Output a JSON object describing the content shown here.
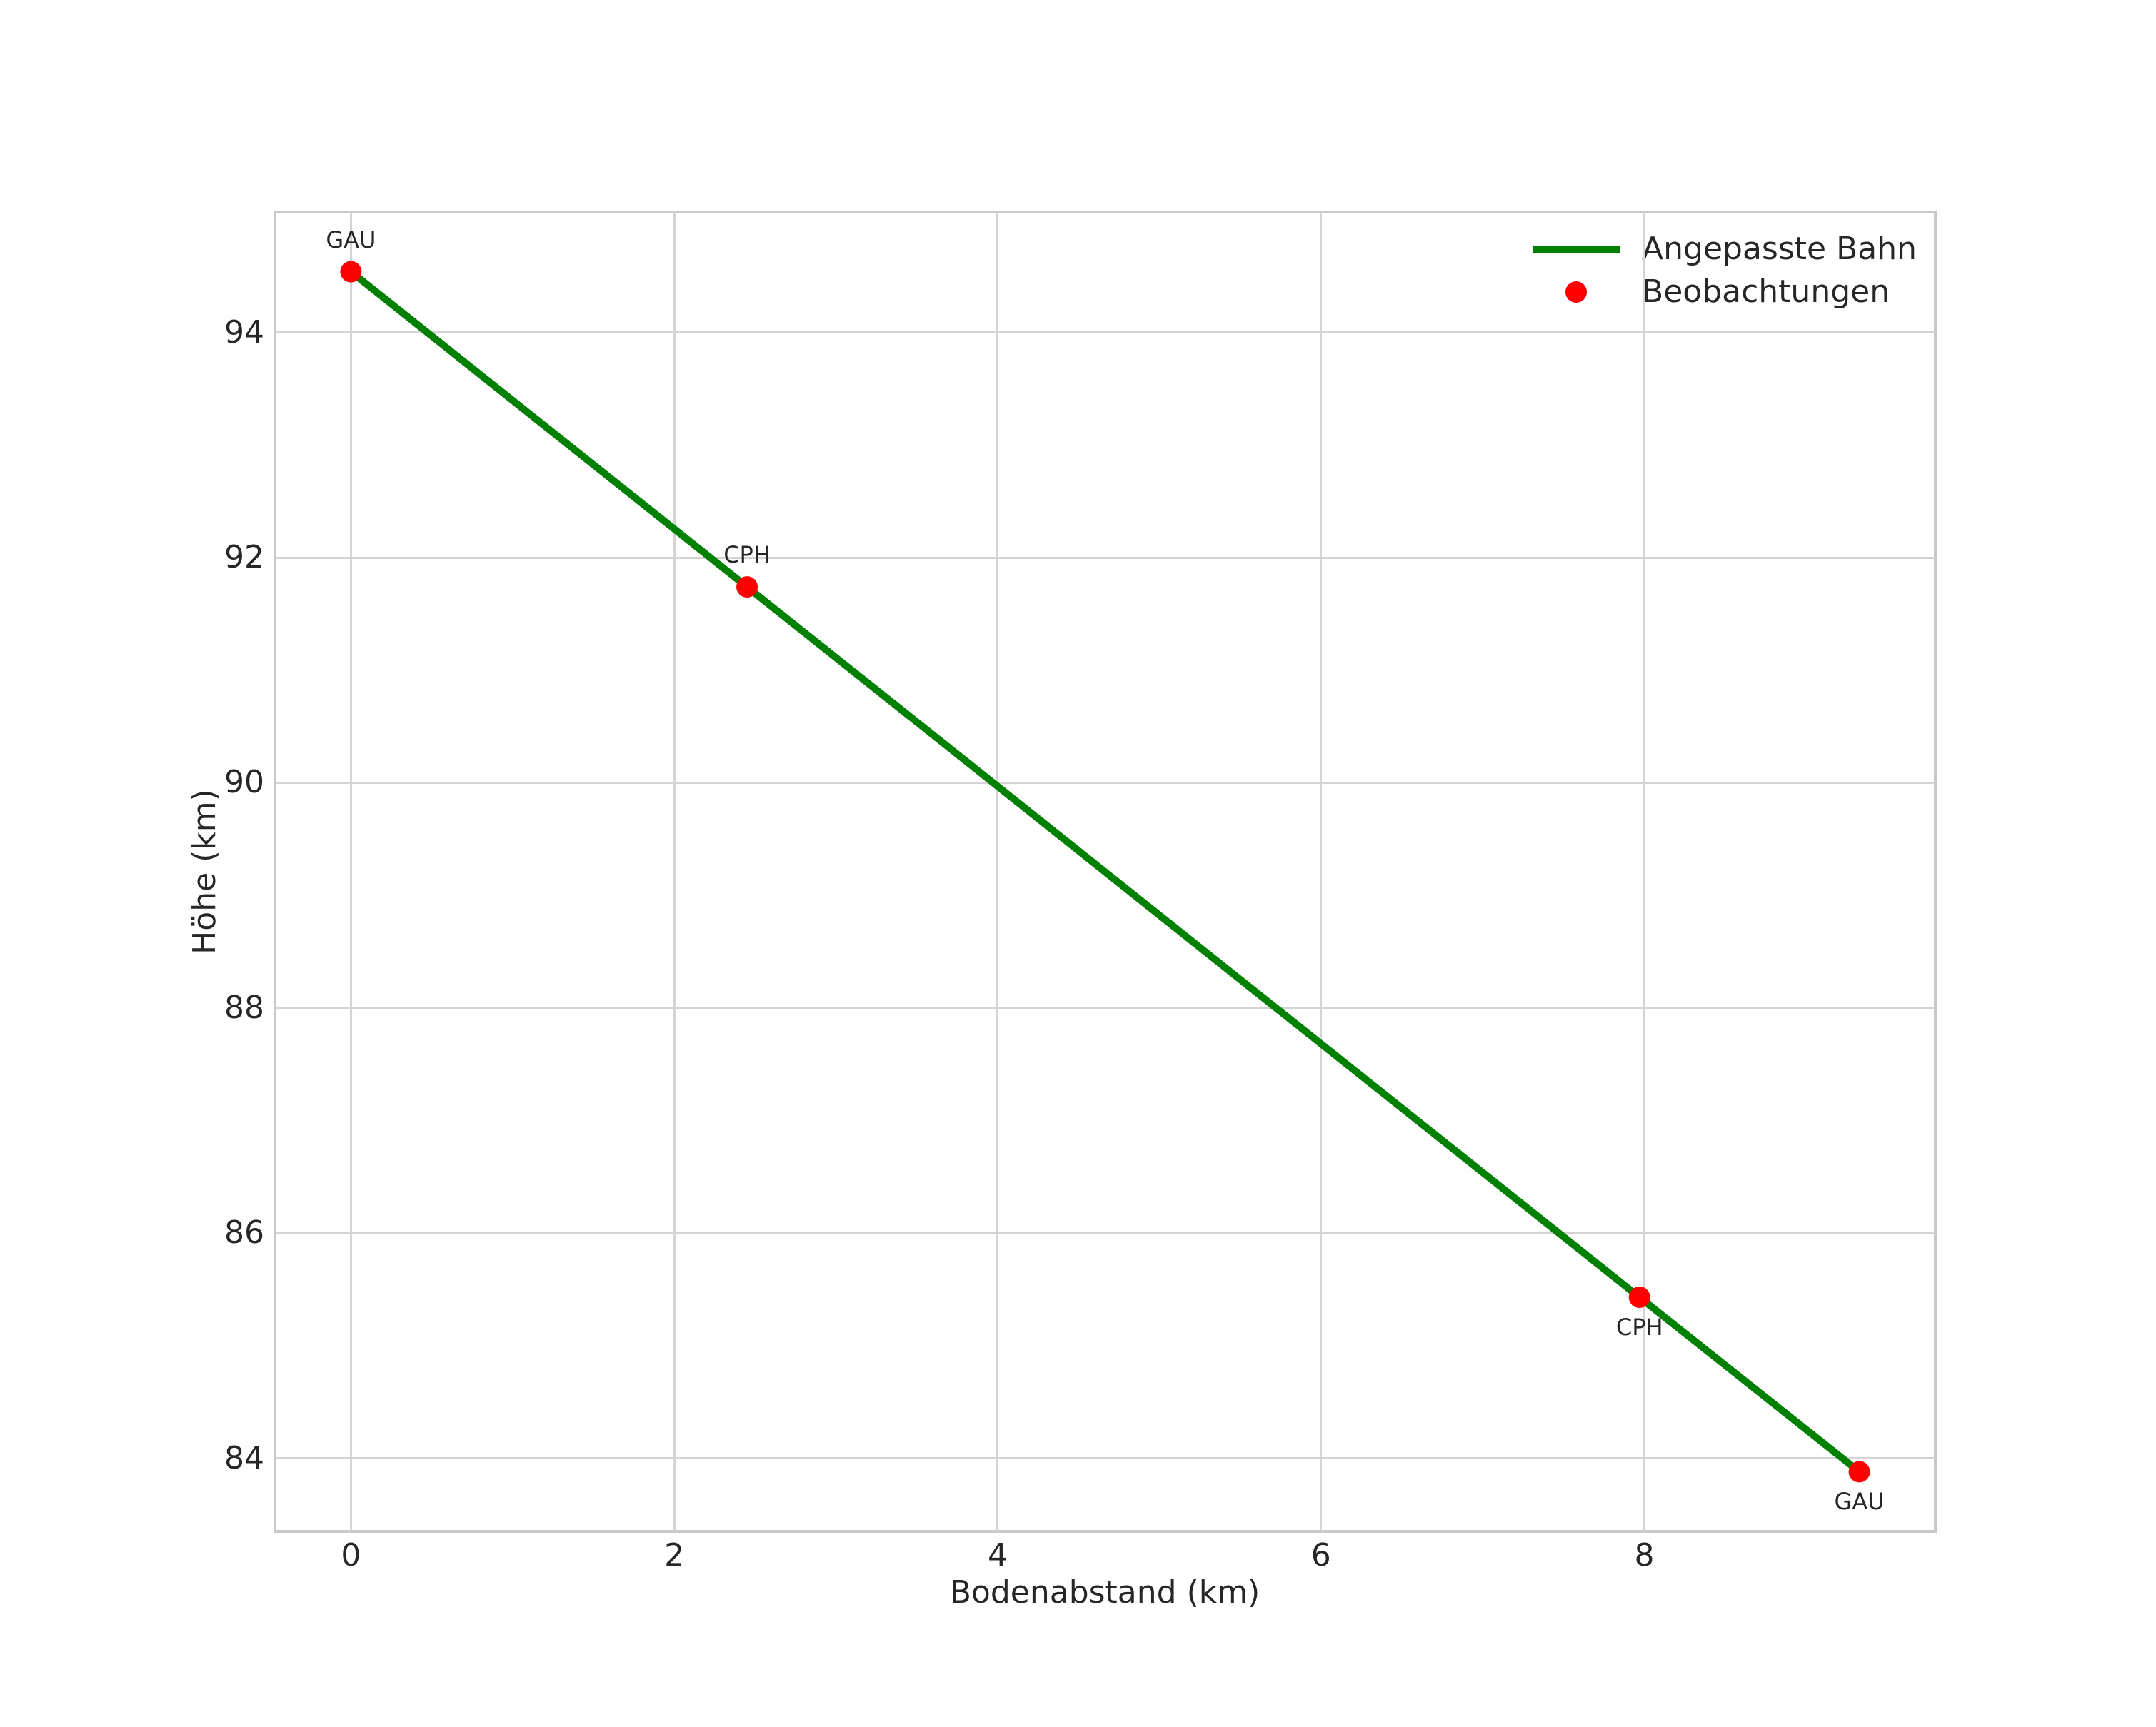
{
  "chart_data": {
    "type": "line",
    "title": "",
    "xlabel": "Bodenabstand (km)",
    "ylabel": "Höhe (km)",
    "xlim": [
      -0.47,
      9.8
    ],
    "ylim": [
      83.35,
      95.07
    ],
    "xticks": [
      0,
      2,
      4,
      6,
      8
    ],
    "yticks": [
      84,
      86,
      88,
      90,
      92,
      94
    ],
    "grid": true,
    "background": "#ffffff",
    "legend_position": "upper right",
    "series": [
      {
        "name": "Angepasste Bahn",
        "type": "line",
        "color": "#008000",
        "x": [
          0.0,
          2.45,
          7.97,
          9.33
        ],
        "y": [
          94.54,
          91.74,
          85.43,
          83.88
        ]
      },
      {
        "name": "Beobachtungen",
        "type": "scatter",
        "color": "#ff0000",
        "x": [
          0.0,
          2.45,
          7.97,
          9.33
        ],
        "y": [
          94.54,
          91.74,
          85.43,
          83.88
        ]
      }
    ],
    "annotations": [
      {
        "text": "GAU",
        "x": 0.0,
        "y": 94.54,
        "placement": "above"
      },
      {
        "text": "CPH",
        "x": 2.45,
        "y": 91.74,
        "placement": "above"
      },
      {
        "text": "CPH",
        "x": 7.97,
        "y": 85.43,
        "placement": "below"
      },
      {
        "text": "GAU",
        "x": 9.33,
        "y": 83.88,
        "placement": "below"
      }
    ],
    "legend": [
      {
        "label": "Angepasste Bahn",
        "swatch": "line",
        "color": "#008000"
      },
      {
        "label": "Beobachtungen",
        "swatch": "dot",
        "color": "#ff0000"
      }
    ]
  }
}
